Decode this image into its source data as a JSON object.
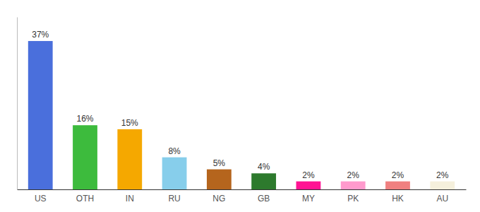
{
  "chart_data": {
    "type": "bar",
    "categories": [
      "US",
      "OTH",
      "IN",
      "RU",
      "NG",
      "GB",
      "MY",
      "PK",
      "HK",
      "AU"
    ],
    "values": [
      37,
      16,
      15,
      8,
      5,
      4,
      2,
      2,
      2,
      2
    ],
    "value_labels": [
      "37%",
      "16%",
      "15%",
      "8%",
      "5%",
      "4%",
      "2%",
      "2%",
      "2%",
      "2%"
    ],
    "colors": [
      "#4a6fdc",
      "#3dbb3d",
      "#f5a800",
      "#87ceeb",
      "#b5651d",
      "#2d7a2d",
      "#ff1493",
      "#ff9acd",
      "#f08080",
      "#f5f0dc"
    ],
    "ylim": [
      0,
      43
    ],
    "data_labels": true,
    "tick_labels": "x",
    "grid": false
  }
}
